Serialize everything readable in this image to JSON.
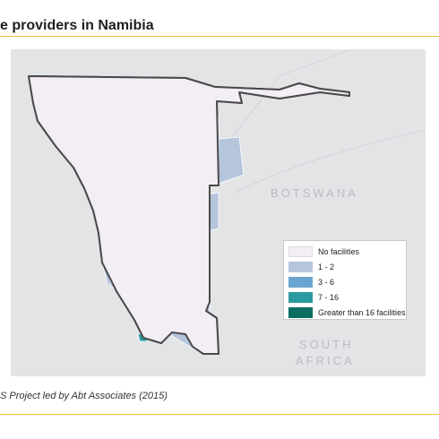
{
  "header": {
    "title": "e providers in Namibia"
  },
  "map": {
    "labels": {
      "botswana": "BOTSWANA",
      "south_africa_1": "SOUTH",
      "south_africa_2": "AFRICA"
    },
    "colors": {
      "background": "#e3e4e6",
      "border": "#4a4a4a"
    }
  },
  "legend": {
    "items": [
      {
        "label": "No facilities",
        "color": "#f3eef6"
      },
      {
        "label": "1 - 2",
        "color": "#b5c5dc"
      },
      {
        "label": "3 - 6",
        "color": "#6aa5cf"
      },
      {
        "label": "7 - 16",
        "color": "#2a9ba0"
      },
      {
        "label": "Greater than 16 facilities",
        "color": "#0b6e62"
      }
    ]
  },
  "footer": {
    "source": "S Project led by Abt Associates (2015)"
  }
}
